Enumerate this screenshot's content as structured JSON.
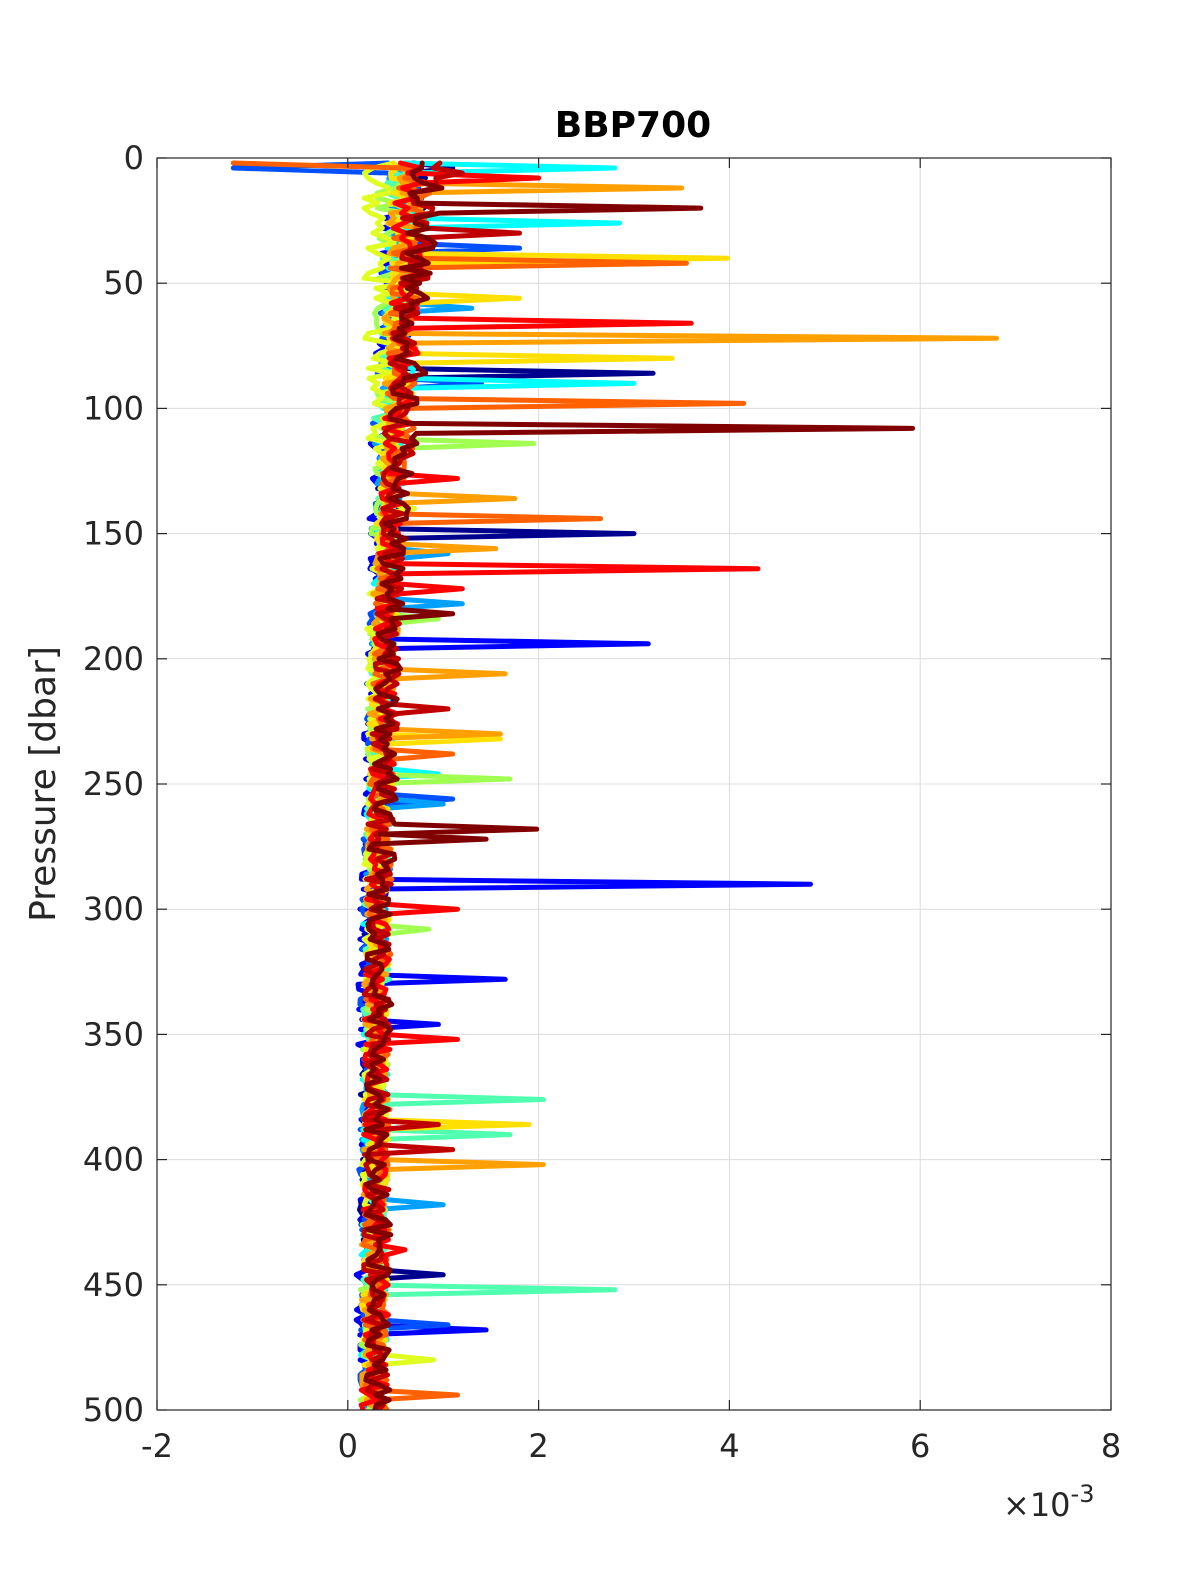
{
  "chart_data": {
    "type": "line",
    "title": "BBP700",
    "ylabel": "Pressure [dbar]",
    "xlabel": "",
    "x_exponent_label": "×10",
    "x_exponent_power": "-3",
    "xlim": [
      -2,
      8
    ],
    "ylim": [
      0,
      500
    ],
    "y_reversed": true,
    "grid": true,
    "x_ticks": [
      -2,
      0,
      2,
      4,
      6,
      8
    ],
    "x_tick_labels": [
      "-2",
      "0",
      "2",
      "4",
      "6",
      "8"
    ],
    "y_ticks": [
      0,
      50,
      100,
      150,
      200,
      250,
      300,
      350,
      400,
      450,
      500
    ],
    "y_tick_labels": [
      "0",
      "50",
      "100",
      "150",
      "200",
      "250",
      "300",
      "350",
      "400",
      "450",
      "500"
    ],
    "series": [
      {
        "color": "#00008f",
        "baseline": [
          [
            0,
            0.65
          ],
          [
            60,
            0.55
          ],
          [
            150,
            0.4
          ],
          [
            300,
            0.28
          ],
          [
            500,
            0.25
          ]
        ],
        "spikes": [
          [
            3,
            1.1
          ],
          [
            85,
            3.2
          ],
          [
            150,
            3.0
          ],
          [
            445,
            1.0
          ]
        ]
      },
      {
        "color": "#0000ff",
        "baseline": [
          [
            0,
            0.55
          ],
          [
            60,
            0.5
          ],
          [
            150,
            0.35
          ],
          [
            300,
            0.25
          ],
          [
            500,
            0.22
          ]
        ],
        "spikes": [
          [
            193,
            3.15
          ],
          [
            290,
            4.85
          ],
          [
            327,
            1.65
          ],
          [
            345,
            0.95
          ],
          [
            468,
            1.45
          ]
        ]
      },
      {
        "color": "#0050ff",
        "baseline": [
          [
            0,
            0.6
          ],
          [
            60,
            0.5
          ],
          [
            150,
            0.38
          ],
          [
            300,
            0.27
          ],
          [
            500,
            0.24
          ]
        ],
        "spikes": [
          [
            3,
            -1.2
          ],
          [
            35,
            1.8
          ],
          [
            90,
            1.4
          ],
          [
            255,
            1.1
          ],
          [
            465,
            1.05
          ]
        ]
      },
      {
        "color": "#00a0ff",
        "baseline": [
          [
            0,
            0.6
          ],
          [
            60,
            0.55
          ],
          [
            150,
            0.4
          ],
          [
            300,
            0.3
          ],
          [
            500,
            0.26
          ]
        ],
        "spikes": [
          [
            60,
            1.3
          ],
          [
            158,
            1.05
          ],
          [
            178,
            1.2
          ],
          [
            258,
            1.0
          ],
          [
            418,
            1.0
          ]
        ]
      },
      {
        "color": "#00ffff",
        "baseline": [
          [
            0,
            0.65
          ],
          [
            60,
            0.55
          ],
          [
            150,
            0.42
          ],
          [
            300,
            0.3
          ],
          [
            500,
            0.27
          ]
        ],
        "spikes": [
          [
            3,
            2.8
          ],
          [
            25,
            2.85
          ],
          [
            90,
            3.0
          ],
          [
            245,
            0.95
          ]
        ]
      },
      {
        "color": "#50ffb0",
        "baseline": [
          [
            0,
            0.6
          ],
          [
            60,
            0.5
          ],
          [
            150,
            0.4
          ],
          [
            300,
            0.3
          ],
          [
            500,
            0.27
          ]
        ],
        "spikes": [
          [
            375,
            2.05
          ],
          [
            451,
            2.8
          ],
          [
            390,
            1.7
          ]
        ]
      },
      {
        "color": "#a0ff50",
        "baseline": [
          [
            0,
            0.5
          ],
          [
            60,
            0.45
          ],
          [
            150,
            0.38
          ],
          [
            300,
            0.3
          ],
          [
            500,
            0.26
          ]
        ],
        "spikes": [
          [
            114,
            1.95
          ],
          [
            183,
            0.95
          ],
          [
            248,
            1.7
          ],
          [
            307,
            0.85
          ]
        ]
      },
      {
        "color": "#e0ff20",
        "baseline": [
          [
            0,
            0.35
          ],
          [
            60,
            0.35
          ],
          [
            150,
            0.35
          ],
          [
            300,
            0.3
          ],
          [
            500,
            0.27
          ]
        ],
        "spikes": [
          [
            50,
            0.6
          ],
          [
            140,
            0.7
          ],
          [
            480,
            0.9
          ]
        ]
      },
      {
        "color": "#ffe000",
        "baseline": [
          [
            0,
            0.6
          ],
          [
            60,
            0.55
          ],
          [
            150,
            0.42
          ],
          [
            300,
            0.3
          ],
          [
            500,
            0.27
          ]
        ],
        "spikes": [
          [
            40,
            3.98
          ],
          [
            80,
            3.4
          ],
          [
            232,
            1.6
          ],
          [
            385,
            1.9
          ],
          [
            55,
            1.8
          ]
        ]
      },
      {
        "color": "#ffa000",
        "baseline": [
          [
            0,
            0.65
          ],
          [
            60,
            0.55
          ],
          [
            150,
            0.42
          ],
          [
            300,
            0.3
          ],
          [
            500,
            0.27
          ]
        ],
        "spikes": [
          [
            12,
            3.5
          ],
          [
            72,
            6.8
          ],
          [
            135,
            1.75
          ],
          [
            155,
            1.55
          ],
          [
            205,
            1.65
          ],
          [
            230,
            1.6
          ],
          [
            402,
            2.05
          ]
        ]
      },
      {
        "color": "#ff6000",
        "baseline": [
          [
            0,
            0.7
          ],
          [
            60,
            0.6
          ],
          [
            150,
            0.45
          ],
          [
            300,
            0.32
          ],
          [
            500,
            0.28
          ]
        ],
        "spikes": [
          [
            2,
            -1.2
          ],
          [
            42,
            3.55
          ],
          [
            98,
            4.15
          ],
          [
            143,
            2.65
          ],
          [
            238,
            1.1
          ],
          [
            493,
            1.15
          ]
        ]
      },
      {
        "color": "#ff0000",
        "baseline": [
          [
            0,
            0.7
          ],
          [
            60,
            0.6
          ],
          [
            150,
            0.45
          ],
          [
            300,
            0.32
          ],
          [
            500,
            0.28
          ]
        ],
        "spikes": [
          [
            8,
            2.0
          ],
          [
            66,
            3.6
          ],
          [
            127,
            1.15
          ],
          [
            164,
            4.3
          ],
          [
            172,
            1.2
          ],
          [
            300,
            1.15
          ],
          [
            352,
            1.15
          ],
          [
            435,
            0.6
          ]
        ]
      },
      {
        "color": "#c00000",
        "baseline": [
          [
            0,
            0.8
          ],
          [
            60,
            0.65
          ],
          [
            150,
            0.45
          ],
          [
            300,
            0.32
          ],
          [
            500,
            0.28
          ]
        ],
        "spikes": [
          [
            5,
            1.2
          ],
          [
            30,
            1.8
          ],
          [
            219,
            1.05
          ],
          [
            385,
            0.95
          ],
          [
            395,
            1.1
          ]
        ]
      },
      {
        "color": "#800000",
        "baseline": [
          [
            0,
            0.85
          ],
          [
            60,
            0.7
          ],
          [
            150,
            0.48
          ],
          [
            300,
            0.34
          ],
          [
            500,
            0.3
          ]
        ],
        "spikes": [
          [
            20,
            3.7
          ],
          [
            108,
            5.92
          ],
          [
            268,
            1.98
          ],
          [
            272,
            1.45
          ],
          [
            182,
            1.1
          ]
        ]
      }
    ]
  }
}
